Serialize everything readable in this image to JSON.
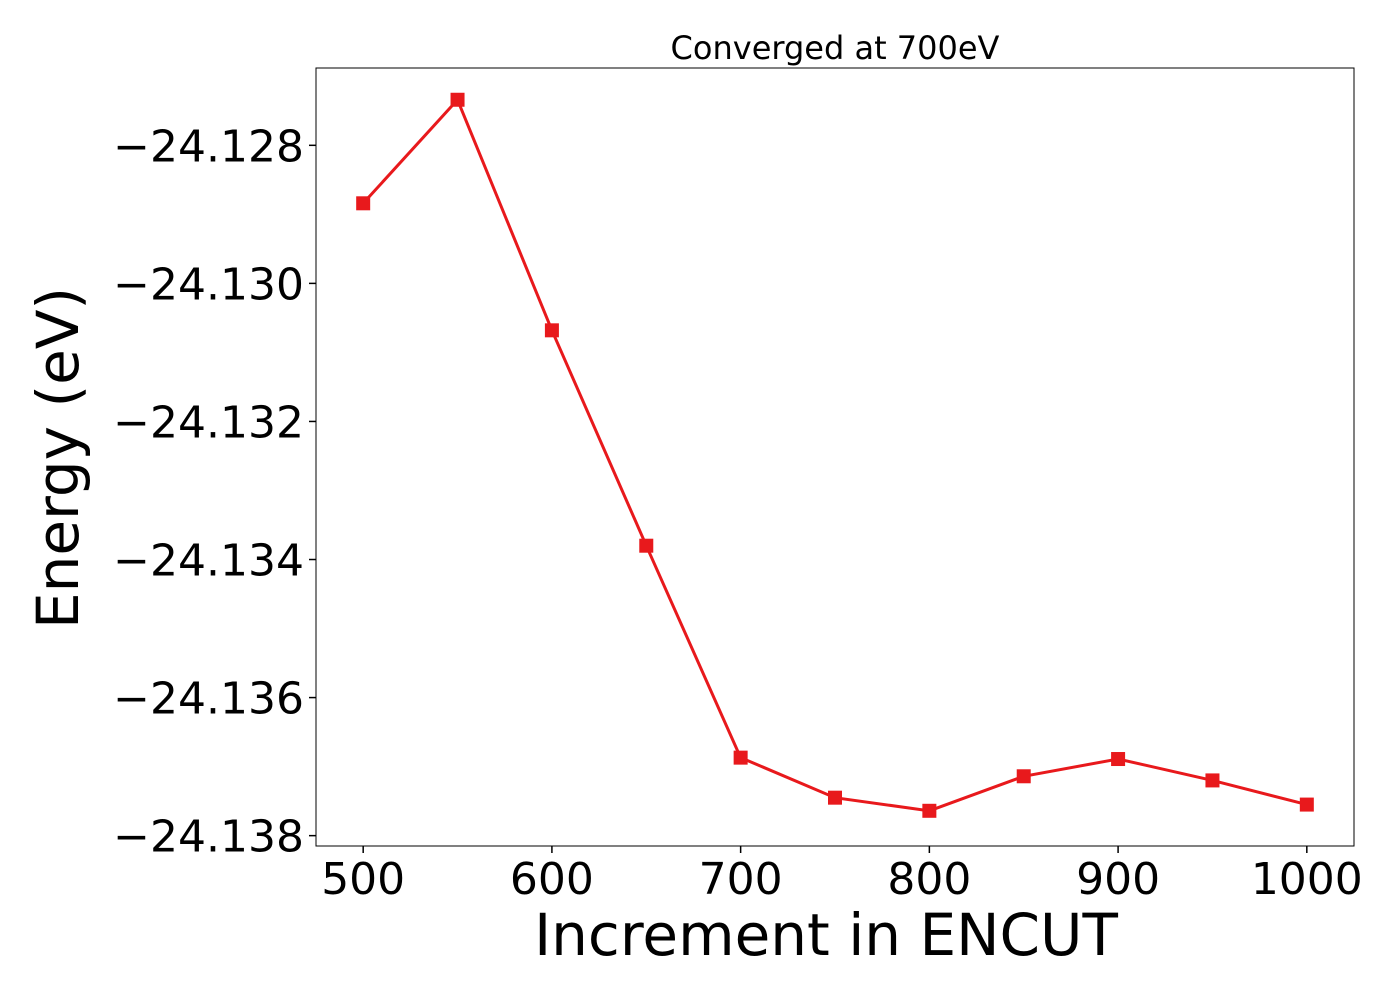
{
  "chart_data": {
    "type": "line",
    "title": "Converged at 700eV",
    "xlabel": "Increment in ENCUT",
    "ylabel": "Energy (eV)",
    "xlim": [
      475,
      1025
    ],
    "ylim": [
      -24.13815,
      -24.12688
    ],
    "xticks": [
      500,
      600,
      700,
      800,
      900,
      1000
    ],
    "yticks": [
      -24.128,
      -24.13,
      -24.132,
      -24.134,
      -24.136,
      -24.138
    ],
    "ytick_labels": [
      "−24.128",
      "−24.130",
      "−24.132",
      "−24.134",
      "−24.136",
      "−24.138"
    ],
    "grid": false,
    "legend": "none",
    "series": [
      {
        "color": "#e8191c",
        "marker": "square",
        "x": [
          500,
          550,
          600,
          650,
          700,
          750,
          800,
          850,
          900,
          950,
          1000
        ],
        "y": [
          -24.12884,
          -24.12734,
          -24.13068,
          -24.1338,
          -24.13687,
          -24.13745,
          -24.13764,
          -24.13714,
          -24.13689,
          -24.1372,
          -24.13755
        ]
      }
    ]
  }
}
